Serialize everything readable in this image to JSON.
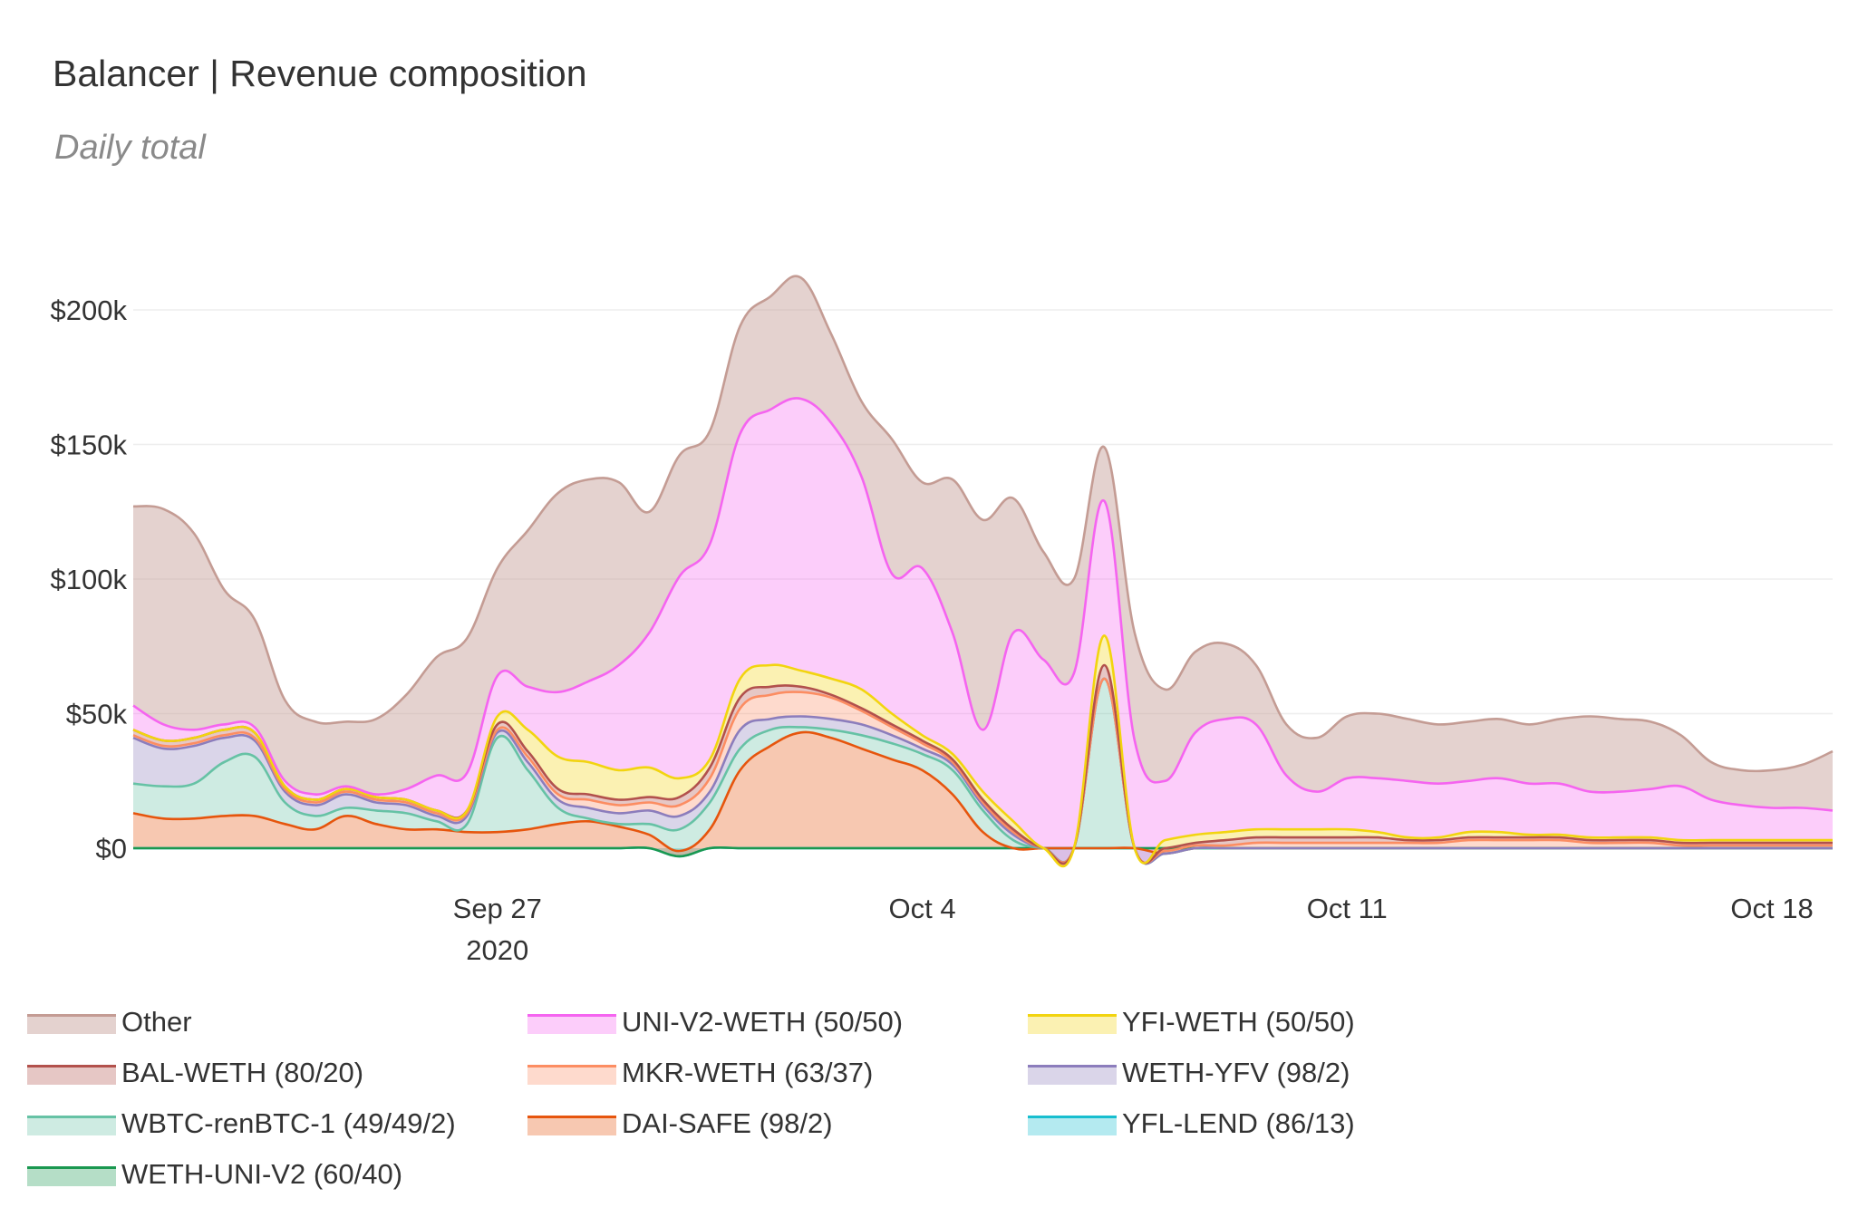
{
  "chart_data": {
    "type": "area",
    "stacked": true,
    "title": "Balancer | Revenue composition",
    "subtitle": "Daily total",
    "xlabel": "",
    "ylabel": "",
    "ylim": [
      -8000,
      215000
    ],
    "yticks": [
      {
        "value": 0,
        "label": "$0"
      },
      {
        "value": 50000,
        "label": "$50k"
      },
      {
        "value": 100000,
        "label": "$100k"
      },
      {
        "value": 150000,
        "label": "$150k"
      },
      {
        "value": 200000,
        "label": "$200k"
      }
    ],
    "xticks": [
      {
        "day": 6,
        "label": "Sep 27",
        "sublabel": "2020"
      },
      {
        "day": 13,
        "label": "Oct 4",
        "sublabel": ""
      },
      {
        "day": 20,
        "label": "Oct 11",
        "sublabel": ""
      },
      {
        "day": 27,
        "label": "Oct 18",
        "sublabel": ""
      }
    ],
    "x_start": "2020-09-21",
    "x": [
      0,
      0.5,
      1,
      1.5,
      2,
      2.5,
      3,
      3.5,
      4,
      4.5,
      5,
      5.5,
      6,
      6.5,
      7,
      7.5,
      8,
      8.5,
      9,
      9.5,
      10,
      10.5,
      11,
      11.5,
      12,
      12.5,
      13,
      13.5,
      14,
      14.5,
      15,
      15.5,
      16,
      16.5,
      17,
      17.5,
      18,
      18.5,
      19,
      19.5,
      20,
      20.5,
      21,
      21.5,
      22,
      22.5,
      23,
      23.5,
      24,
      24.5,
      25,
      25.5,
      26,
      26.5,
      27,
      27.5,
      28
    ],
    "series": [
      {
        "name": "YFL-LEND (86/13)",
        "color": "#17becf",
        "values": [
          0,
          0,
          0,
          0,
          0,
          0,
          0,
          0,
          0,
          0,
          0,
          0,
          0,
          0,
          0,
          0,
          0,
          0,
          -3000,
          0,
          0,
          0,
          0,
          0,
          0,
          0,
          0,
          0,
          0,
          0,
          0,
          0,
          0,
          0,
          0,
          0,
          0,
          0,
          0,
          0,
          0,
          0,
          0,
          0,
          0,
          0,
          0,
          0,
          0,
          0,
          0,
          0,
          0,
          0,
          0,
          0,
          0
        ]
      },
      {
        "name": "WETH-UNI-V2 (60/40)",
        "color": "#1a9850",
        "values": [
          0,
          0,
          0,
          0,
          0,
          0,
          0,
          0,
          0,
          0,
          0,
          0,
          0,
          0,
          0,
          0,
          0,
          0,
          0,
          0,
          0,
          0,
          0,
          0,
          0,
          0,
          0,
          0,
          0,
          0,
          0,
          0,
          0,
          0,
          0,
          0,
          0,
          0,
          0,
          0,
          0,
          0,
          0,
          0,
          0,
          0,
          0,
          0,
          0,
          0,
          0,
          0,
          0,
          0,
          0,
          0,
          0
        ]
      },
      {
        "name": "DAI-SAFE (98/2)",
        "color": "#e6550d",
        "values": [
          13000,
          11000,
          11000,
          12000,
          12000,
          9000,
          7000,
          12000,
          9000,
          7000,
          7000,
          6000,
          6000,
          7000,
          9000,
          10000,
          8000,
          5000,
          2000,
          7000,
          29000,
          38000,
          43000,
          41000,
          37000,
          33000,
          29000,
          20000,
          6000,
          0,
          0,
          0,
          0,
          0,
          -2000,
          0,
          0,
          0,
          0,
          0,
          0,
          0,
          0,
          0,
          0,
          0,
          0,
          0,
          0,
          0,
          0,
          0,
          0,
          0,
          0,
          0,
          0
        ]
      },
      {
        "name": "WBTC-renBTC-1 (49/49/2)",
        "color": "#66c2a5",
        "values": [
          11000,
          12000,
          13000,
          20000,
          22000,
          8000,
          5000,
          3000,
          5000,
          6000,
          3000,
          3000,
          35000,
          22000,
          6000,
          1000,
          1000,
          4000,
          8000,
          10000,
          8000,
          6000,
          2000,
          3000,
          5000,
          6000,
          6000,
          9000,
          8000,
          3000,
          0,
          0,
          63000,
          0,
          0,
          0,
          0,
          0,
          0,
          0,
          0,
          0,
          0,
          0,
          0,
          0,
          0,
          0,
          0,
          0,
          0,
          0,
          0,
          0,
          0,
          0,
          0
        ]
      },
      {
        "name": "WETH-YFV (98/2)",
        "color": "#8c7dbc",
        "values": [
          17000,
          14000,
          14000,
          9000,
          6000,
          4000,
          4000,
          5000,
          3000,
          3000,
          2000,
          3000,
          2000,
          3000,
          3000,
          4000,
          4000,
          5000,
          5000,
          4000,
          7000,
          4000,
          4000,
          4000,
          4000,
          3000,
          2000,
          2000,
          2000,
          2000,
          0,
          0,
          0,
          0,
          0,
          0,
          0,
          0,
          0,
          0,
          0,
          0,
          0,
          0,
          0,
          0,
          0,
          0,
          0,
          0,
          0,
          0,
          0,
          0,
          0,
          0,
          0
        ]
      },
      {
        "name": "MKR-WETH (63/37)",
        "color": "#fc8d62",
        "values": [
          1000,
          1000,
          1000,
          1000,
          1000,
          1000,
          1000,
          1000,
          1000,
          1000,
          1000,
          1000,
          1000,
          2000,
          2000,
          3000,
          3000,
          3000,
          4000,
          5000,
          8000,
          9000,
          9000,
          8000,
          5000,
          3000,
          2000,
          1000,
          1000,
          1000,
          0,
          0,
          0,
          0,
          1000,
          1000,
          1000,
          2000,
          2000,
          2000,
          2000,
          2000,
          2000,
          2000,
          3000,
          3000,
          3000,
          3000,
          2000,
          2000,
          2000,
          1000,
          1000,
          1000,
          1000,
          1000,
          1000
        ]
      },
      {
        "name": "BAL-WETH (80/20)",
        "color": "#b2514c",
        "values": [
          2000,
          2000,
          2000,
          2000,
          2000,
          1000,
          1000,
          1000,
          1000,
          1000,
          1000,
          1000,
          2000,
          2000,
          2000,
          2000,
          2000,
          2000,
          3000,
          4000,
          4000,
          3000,
          2000,
          1000,
          1000,
          1000,
          1000,
          1000,
          1000,
          1000,
          0,
          0,
          5000,
          0,
          1000,
          1000,
          2000,
          2000,
          2000,
          2000,
          2000,
          2000,
          1000,
          1000,
          1000,
          1000,
          1000,
          1000,
          1000,
          1000,
          1000,
          1000,
          1000,
          1000,
          1000,
          1000,
          1000
        ]
      },
      {
        "name": "YFI-WETH (50/50)",
        "color": "#f2d40f",
        "values": [
          0,
          0,
          0,
          0,
          0,
          0,
          0,
          0,
          0,
          0,
          0,
          0,
          3000,
          8000,
          12000,
          12000,
          11000,
          11000,
          7000,
          3000,
          7000,
          8000,
          6000,
          6000,
          7000,
          4000,
          2000,
          2000,
          3000,
          3000,
          0,
          0,
          11000,
          0,
          3000,
          3000,
          3000,
          3000,
          3000,
          3000,
          3000,
          2000,
          1000,
          1000,
          2000,
          2000,
          1000,
          1000,
          1000,
          1000,
          1000,
          1000,
          1000,
          1000,
          1000,
          1000,
          1000
        ]
      },
      {
        "name": "UNI-V2-WETH (50/50)",
        "color": "#f564f0",
        "values": [
          9000,
          6000,
          3000,
          2000,
          2000,
          2000,
          2000,
          1000,
          1000,
          4000,
          13000,
          14000,
          15000,
          16000,
          24000,
          30000,
          39000,
          50000,
          75000,
          80000,
          91000,
          95000,
          101000,
          95000,
          79000,
          52000,
          62000,
          45000,
          23000,
          70000,
          70000,
          65000,
          50000,
          40000,
          22000,
          38000,
          42000,
          39000,
          20000,
          14000,
          19000,
          20000,
          21000,
          20000,
          19000,
          20000,
          19000,
          19000,
          17000,
          17000,
          18000,
          20000,
          15000,
          13000,
          12000,
          12000,
          11000
        ]
      },
      {
        "name": "Other",
        "color": "#c49c94",
        "values": [
          74000,
          80000,
          73000,
          50000,
          40000,
          30000,
          27000,
          24000,
          28000,
          35000,
          44000,
          50000,
          40000,
          58000,
          74000,
          75000,
          68000,
          45000,
          45000,
          42000,
          40000,
          42000,
          45000,
          33000,
          28000,
          50000,
          32000,
          57000,
          78000,
          50000,
          40000,
          35000,
          20000,
          40000,
          34000,
          30000,
          28000,
          22000,
          19000,
          20000,
          23000,
          24000,
          23000,
          22000,
          22000,
          22000,
          22000,
          24000,
          28000,
          27000,
          25000,
          19000,
          14000,
          13000,
          14000,
          16000,
          22000
        ]
      }
    ]
  },
  "legend": [
    {
      "name": "Other",
      "color": "#c49c94"
    },
    {
      "name": "UNI-V2-WETH (50/50)",
      "color": "#f564f0"
    },
    {
      "name": "YFI-WETH (50/50)",
      "color": "#f2d40f"
    },
    {
      "name": "BAL-WETH (80/20)",
      "color": "#b2514c"
    },
    {
      "name": "MKR-WETH (63/37)",
      "color": "#fc8d62"
    },
    {
      "name": "WETH-YFV (98/2)",
      "color": "#8c7dbc"
    },
    {
      "name": "WBTC-renBTC-1 (49/49/2)",
      "color": "#66c2a5"
    },
    {
      "name": "DAI-SAFE (98/2)",
      "color": "#e6550d"
    },
    {
      "name": "YFL-LEND (86/13)",
      "color": "#17becf"
    },
    {
      "name": "WETH-UNI-V2 (60/40)",
      "color": "#1a9850"
    }
  ]
}
